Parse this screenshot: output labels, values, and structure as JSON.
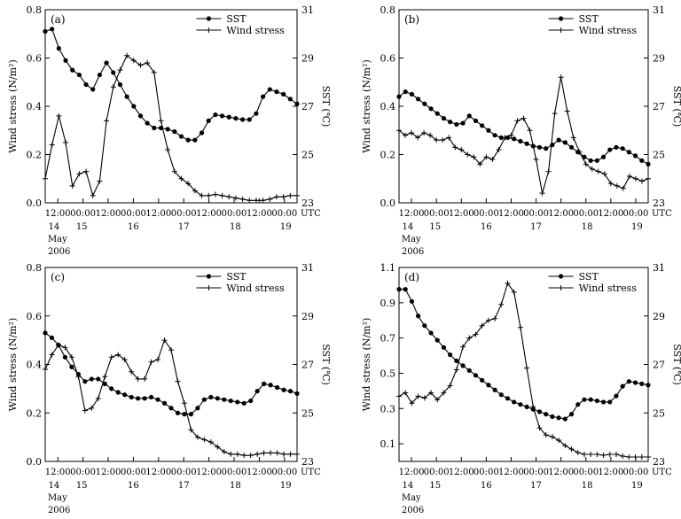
{
  "chart_data": [
    {
      "type": "line",
      "panel_label": "(a)",
      "ylabel_left": "Wind stress (N/m²)",
      "ylabel_right": "SST (℃)",
      "y_left_range": [
        0,
        0.8
      ],
      "y_left_ticks": [
        "0.0",
        "0.2",
        "0.4",
        "0.6",
        "0.8"
      ],
      "y_right_range": [
        23,
        31
      ],
      "y_right_ticks": [
        "23",
        "25",
        "27",
        "29",
        "31"
      ],
      "x_tick_labels": [
        "12:00",
        "00:00",
        "12:00",
        "00:00",
        "12:00",
        "00:00",
        "12:00",
        "00:00",
        "12:00",
        "00:00",
        "UTC"
      ],
      "day_labels": [
        "14",
        "15",
        "16",
        "17",
        "18",
        "19"
      ],
      "month_label": "May",
      "year_label": "2006",
      "legend": [
        "SST",
        "Wind stress"
      ],
      "series": [
        {
          "name": "SST",
          "axis": "right",
          "marker": "circle",
          "values": [
            30.1,
            30.2,
            29.4,
            28.9,
            28.5,
            28.3,
            27.9,
            27.7,
            28.3,
            28.8,
            28.4,
            27.9,
            27.4,
            27.0,
            26.6,
            26.3,
            26.1,
            26.1,
            26.05,
            25.95,
            25.75,
            25.6,
            25.6,
            25.9,
            26.4,
            26.65,
            26.6,
            26.55,
            26.5,
            26.45,
            26.45,
            26.7,
            27.4,
            27.7,
            27.6,
            27.5,
            27.3,
            27.1
          ]
        },
        {
          "name": "Wind stress",
          "axis": "left",
          "marker": "plus",
          "values": [
            0.1,
            0.24,
            0.36,
            0.25,
            0.07,
            0.12,
            0.13,
            0.03,
            0.09,
            0.34,
            0.48,
            0.55,
            0.61,
            0.59,
            0.57,
            0.58,
            0.54,
            0.34,
            0.22,
            0.13,
            0.1,
            0.08,
            0.05,
            0.03,
            0.03,
            0.035,
            0.03,
            0.025,
            0.02,
            0.015,
            0.01,
            0.01,
            0.01,
            0.015,
            0.025,
            0.025,
            0.03,
            0.03
          ]
        }
      ]
    },
    {
      "type": "line",
      "panel_label": "(b)",
      "ylabel_left": "Wind stress (N/m²)",
      "ylabel_right": "SST (℃)",
      "y_left_range": [
        0,
        0.8
      ],
      "y_left_ticks": [
        "0.0",
        "0.2",
        "0.4",
        "0.6",
        "0.8"
      ],
      "y_right_range": [
        23,
        31
      ],
      "y_right_ticks": [
        "23",
        "25",
        "27",
        "29",
        "31"
      ],
      "x_tick_labels": [
        "12:00",
        "00:00",
        "12:00",
        "00:00",
        "12:00",
        "00:00",
        "12:00",
        "00:00",
        "12:00",
        "00:00",
        "UTC"
      ],
      "day_labels": [
        "14",
        "15",
        "16",
        "17",
        "18",
        "19"
      ],
      "month_label": "May",
      "year_label": "2006",
      "legend": [
        "SST",
        "Wind stress"
      ],
      "series": [
        {
          "name": "SST",
          "axis": "right",
          "marker": "circle",
          "values": [
            27.4,
            27.6,
            27.5,
            27.3,
            27.1,
            26.9,
            26.7,
            26.5,
            26.35,
            26.25,
            26.3,
            26.6,
            26.4,
            26.2,
            26.0,
            25.8,
            25.7,
            25.7,
            25.65,
            25.55,
            25.45,
            25.35,
            25.3,
            25.25,
            25.4,
            25.6,
            25.5,
            25.3,
            25.1,
            24.9,
            24.75,
            24.75,
            24.9,
            25.2,
            25.3,
            25.25,
            25.1,
            24.95,
            24.75,
            24.6
          ]
        },
        {
          "name": "Wind stress",
          "axis": "left",
          "marker": "plus",
          "values": [
            0.3,
            0.28,
            0.29,
            0.27,
            0.29,
            0.28,
            0.26,
            0.26,
            0.27,
            0.23,
            0.22,
            0.2,
            0.19,
            0.16,
            0.19,
            0.18,
            0.22,
            0.27,
            0.28,
            0.34,
            0.35,
            0.3,
            0.18,
            0.04,
            0.13,
            0.37,
            0.52,
            0.38,
            0.27,
            0.21,
            0.16,
            0.14,
            0.13,
            0.12,
            0.08,
            0.07,
            0.06,
            0.11,
            0.1,
            0.09,
            0.1
          ]
        }
      ]
    },
    {
      "type": "line",
      "panel_label": "(c)",
      "ylabel_left": "Wind stress (N/m²)",
      "ylabel_right": "SST (℃)",
      "y_left_range": [
        0,
        0.8
      ],
      "y_left_ticks": [
        "0.0",
        "0.2",
        "0.4",
        "0.6",
        "0.8"
      ],
      "y_right_range": [
        23,
        31
      ],
      "y_right_ticks": [
        "23",
        "25",
        "27",
        "29",
        "31"
      ],
      "x_tick_labels": [
        "12:00",
        "00:00",
        "12:00",
        "00:00",
        "12:00",
        "00:00",
        "12:00",
        "00:00",
        "12:00",
        "00:00",
        "UTC"
      ],
      "day_labels": [
        "14",
        "15",
        "16",
        "17",
        "18",
        "19"
      ],
      "month_label": "May",
      "year_label": "2006",
      "legend": [
        "SST",
        "Wind stress"
      ],
      "series": [
        {
          "name": "SST",
          "axis": "right",
          "marker": "circle",
          "values": [
            28.3,
            28.1,
            27.8,
            27.3,
            26.9,
            26.6,
            26.3,
            26.4,
            26.4,
            26.2,
            26.0,
            25.85,
            25.75,
            25.65,
            25.6,
            25.6,
            25.65,
            25.55,
            25.4,
            25.2,
            25.0,
            24.95,
            24.95,
            25.2,
            25.55,
            25.65,
            25.6,
            25.55,
            25.5,
            25.45,
            25.4,
            25.5,
            25.9,
            26.2,
            26.15,
            26.05,
            25.95,
            25.9,
            25.8
          ]
        },
        {
          "name": "Wind stress",
          "axis": "left",
          "marker": "plus",
          "values": [
            0.38,
            0.44,
            0.48,
            0.47,
            0.43,
            0.35,
            0.21,
            0.22,
            0.26,
            0.35,
            0.43,
            0.44,
            0.42,
            0.37,
            0.34,
            0.34,
            0.41,
            0.42,
            0.5,
            0.46,
            0.33,
            0.24,
            0.13,
            0.1,
            0.09,
            0.08,
            0.06,
            0.04,
            0.03,
            0.03,
            0.025,
            0.025,
            0.03,
            0.035,
            0.035,
            0.035,
            0.03,
            0.03,
            0.03
          ]
        }
      ]
    },
    {
      "type": "line",
      "panel_label": "(d)",
      "ylabel_left": "Wind stress (N/m²)",
      "ylabel_right": "SST (℃)",
      "y_left_range": [
        0,
        1.1
      ],
      "y_left_ticks": [
        "0.1",
        "0.3",
        "0.5",
        "0.7",
        "0.9",
        "1.1"
      ],
      "y_left_tick_values": [
        0.1,
        0.3,
        0.5,
        0.7,
        0.9,
        1.1
      ],
      "y_right_range": [
        23,
        31
      ],
      "y_right_ticks": [
        "23",
        "25",
        "27",
        "29",
        "31"
      ],
      "x_tick_labels": [
        "12:00",
        "00:00",
        "12:00",
        "00:00",
        "12:00",
        "00:00",
        "12:00",
        "00:00",
        "12:00",
        "00:00",
        "UTC"
      ],
      "day_labels": [
        "14",
        "15",
        "16",
        "17",
        "18",
        "19"
      ],
      "month_label": "May",
      "year_label": "2006",
      "legend": [
        "SST",
        "Wind stress"
      ],
      "series": [
        {
          "name": "SST",
          "axis": "right",
          "marker": "circle",
          "values": [
            30.1,
            30.1,
            29.6,
            29.0,
            28.6,
            28.3,
            28.0,
            27.7,
            27.4,
            27.15,
            26.95,
            26.75,
            26.55,
            26.35,
            26.15,
            25.95,
            25.75,
            25.6,
            25.45,
            25.35,
            25.25,
            25.15,
            25.05,
            24.95,
            24.85,
            24.8,
            24.75,
            24.95,
            25.35,
            25.55,
            25.55,
            25.5,
            25.45,
            25.45,
            25.7,
            26.1,
            26.3,
            26.25,
            26.2,
            26.15
          ]
        },
        {
          "name": "Wind stress",
          "axis": "left",
          "marker": "plus",
          "values": [
            0.37,
            0.39,
            0.33,
            0.37,
            0.36,
            0.39,
            0.35,
            0.39,
            0.43,
            0.52,
            0.65,
            0.7,
            0.72,
            0.77,
            0.8,
            0.81,
            0.89,
            1.01,
            0.96,
            0.76,
            0.53,
            0.31,
            0.19,
            0.15,
            0.14,
            0.12,
            0.09,
            0.07,
            0.05,
            0.04,
            0.04,
            0.04,
            0.035,
            0.04,
            0.04,
            0.03,
            0.025,
            0.025,
            0.025,
            0.025
          ]
        }
      ]
    }
  ]
}
